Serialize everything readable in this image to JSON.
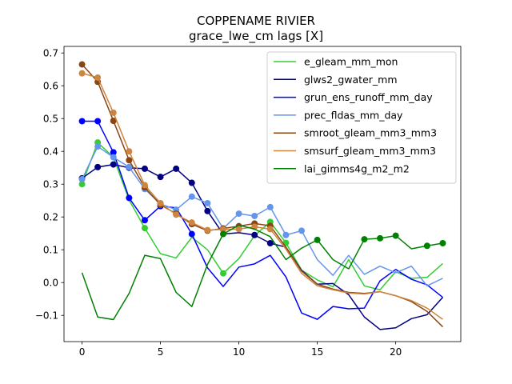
{
  "chart_data": {
    "type": "line",
    "title": "COPPENAME RIVIER",
    "subtitle": "grace_lwe_cm lags [X]",
    "xlabel": "",
    "ylabel": "",
    "xlim": [
      -1.15,
      24.15
    ],
    "ylim": [
      -0.18,
      0.72
    ],
    "xticks": [
      0,
      5,
      10,
      15,
      20
    ],
    "yticks": [
      -0.1,
      0.0,
      0.1,
      0.2,
      0.3,
      0.4,
      0.5,
      0.6,
      0.7
    ],
    "ytick_labels": [
      "−0.1",
      "0.0",
      "0.1",
      "0.2",
      "0.3",
      "0.4",
      "0.5",
      "0.6",
      "0.7"
    ],
    "grid": false,
    "legend_position": "top-right",
    "series": [
      {
        "name": "e_gleam_mm_mon",
        "color": "#32cd32",
        "x": [
          0,
          1,
          2,
          3,
          4,
          5,
          6,
          7,
          8,
          9,
          10,
          11,
          12,
          13,
          14,
          15,
          16,
          17,
          18,
          19,
          20,
          21,
          22,
          23
        ],
        "values": [
          0.3,
          0.427,
          0.382,
          0.252,
          0.166,
          0.088,
          0.075,
          0.138,
          0.1,
          0.028,
          0.073,
          0.143,
          0.185,
          0.121,
          0.038,
          0.008,
          -0.013,
          0.07,
          -0.01,
          -0.022,
          0.033,
          0.013,
          0.016,
          0.058
        ],
        "markers": [
          0,
          1,
          4,
          9,
          12,
          13
        ]
      },
      {
        "name": "glws2_gwater_mm",
        "color": "#000080",
        "x": [
          0,
          1,
          2,
          3,
          4,
          5,
          6,
          7,
          8,
          9,
          10,
          11,
          12,
          13,
          14,
          15,
          16,
          17,
          18,
          19,
          20,
          21,
          22,
          23
        ],
        "values": [
          0.318,
          0.352,
          0.36,
          0.35,
          0.347,
          0.322,
          0.347,
          0.304,
          0.218,
          0.148,
          0.152,
          0.145,
          0.12,
          0.108,
          0.037,
          -0.005,
          -0.003,
          -0.037,
          -0.105,
          -0.143,
          -0.138,
          -0.11,
          -0.098,
          -0.045
        ],
        "markers": [
          0,
          1,
          2,
          3,
          4,
          5,
          6,
          7,
          8,
          11,
          12
        ]
      },
      {
        "name": "grun_ens_runoff_mm_day",
        "color": "#0000ff",
        "x": [
          0,
          1,
          2,
          3,
          4,
          5,
          6,
          7,
          8,
          9,
          10,
          11,
          12,
          13,
          14,
          15,
          16,
          17,
          18,
          19,
          20,
          21,
          22,
          23
        ],
        "values": [
          0.492,
          0.492,
          0.397,
          0.258,
          0.19,
          0.233,
          0.228,
          0.148,
          0.045,
          -0.012,
          0.047,
          0.057,
          0.083,
          0.017,
          -0.093,
          -0.112,
          -0.073,
          -0.08,
          -0.078,
          0.005,
          0.04,
          0.01,
          -0.007,
          -0.045
        ],
        "markers": [
          0,
          1,
          2,
          3,
          4,
          5,
          7
        ]
      },
      {
        "name": "prec_fldas_mm_day",
        "color": "#6495ed",
        "x": [
          0,
          1,
          2,
          3,
          4,
          5,
          6,
          7,
          8,
          9,
          10,
          11,
          12,
          13,
          14,
          15,
          16,
          17,
          18,
          19,
          20,
          21,
          22,
          23
        ],
        "values": [
          0.315,
          0.415,
          0.382,
          0.352,
          0.285,
          0.24,
          0.222,
          0.262,
          0.242,
          0.165,
          0.21,
          0.203,
          0.23,
          0.145,
          0.158,
          0.07,
          0.022,
          0.083,
          0.025,
          0.05,
          0.03,
          0.05,
          -0.01,
          0.013
        ],
        "markers": [
          0,
          1,
          2,
          3,
          4,
          5,
          6,
          7,
          8,
          10,
          11,
          12,
          13,
          14
        ]
      },
      {
        "name": "smroot_gleam_mm3_mm3",
        "color": "#8b4513",
        "x": [
          0,
          1,
          2,
          3,
          4,
          5,
          6,
          7,
          8,
          9,
          10,
          11,
          12,
          13,
          14,
          15,
          16,
          17,
          18,
          19,
          20,
          21,
          22,
          23
        ],
        "values": [
          0.665,
          0.612,
          0.493,
          0.373,
          0.29,
          0.237,
          0.21,
          0.178,
          0.158,
          0.165,
          0.172,
          0.18,
          0.173,
          0.108,
          0.035,
          -0.005,
          -0.02,
          -0.03,
          -0.033,
          -0.028,
          -0.04,
          -0.058,
          -0.088,
          -0.135
        ],
        "markers": [
          0,
          1,
          2,
          3,
          4,
          5,
          6,
          7,
          8,
          9,
          10,
          11,
          12
        ]
      },
      {
        "name": "smsurf_gleam_mm3_mm3",
        "color": "#cd853f",
        "x": [
          0,
          1,
          2,
          3,
          4,
          5,
          6,
          7,
          8,
          9,
          10,
          11,
          12,
          13,
          14,
          15,
          16,
          17,
          18,
          19,
          20,
          21,
          22,
          23
        ],
        "values": [
          0.638,
          0.625,
          0.518,
          0.4,
          0.297,
          0.242,
          0.207,
          0.183,
          0.16,
          0.162,
          0.163,
          0.17,
          0.163,
          0.102,
          0.028,
          -0.01,
          -0.022,
          -0.032,
          -0.035,
          -0.028,
          -0.04,
          -0.055,
          -0.078,
          -0.112
        ],
        "markers": [
          0,
          1,
          2,
          3,
          4,
          5,
          6,
          7,
          8,
          9,
          10,
          11,
          12
        ]
      },
      {
        "name": "lai_gimms4g_m2_m2",
        "color": "#008000",
        "x": [
          0,
          1,
          2,
          3,
          4,
          5,
          6,
          7,
          8,
          9,
          10,
          11,
          12,
          13,
          14,
          15,
          16,
          17,
          18,
          19,
          20,
          21,
          22,
          23
        ],
        "values": [
          0.03,
          -0.105,
          -0.113,
          -0.033,
          0.083,
          0.073,
          -0.03,
          -0.073,
          0.055,
          0.148,
          0.175,
          0.163,
          0.14,
          0.07,
          0.105,
          0.13,
          0.07,
          0.042,
          0.132,
          0.135,
          0.143,
          0.103,
          0.112,
          0.12
        ],
        "markers": [
          9,
          15,
          18,
          19,
          20,
          22,
          23
        ]
      }
    ]
  }
}
